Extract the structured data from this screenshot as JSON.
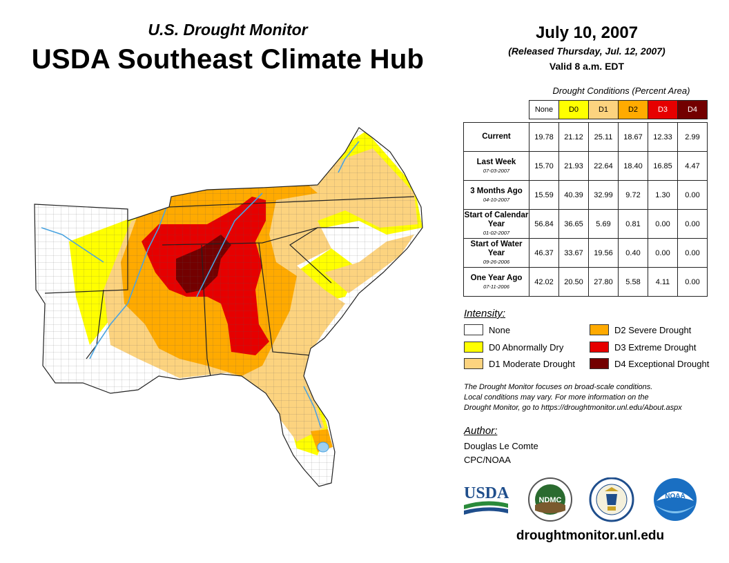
{
  "header": {
    "subtitle": "U.S. Drought Monitor",
    "title": "USDA Southeast Climate Hub",
    "date": "July 10, 2007",
    "released": "(Released Thursday, Jul. 12, 2007)",
    "valid": "Valid 8 a.m. EDT"
  },
  "table": {
    "caption": "Drought Conditions (Percent Area)",
    "columns": [
      "None",
      "D0",
      "D1",
      "D2",
      "D3",
      "D4"
    ],
    "column_colors": [
      "#ffffff",
      "#ffff00",
      "#fcd37f",
      "#ffaa00",
      "#e60000",
      "#730000"
    ],
    "rows": [
      {
        "label": "Current",
        "sub": "",
        "values": [
          "19.78",
          "21.12",
          "25.11",
          "18.67",
          "12.33",
          "2.99"
        ]
      },
      {
        "label": "Last Week",
        "sub": "07-03-2007",
        "values": [
          "15.70",
          "21.93",
          "22.64",
          "18.40",
          "16.85",
          "4.47"
        ]
      },
      {
        "label": "3 Months Ago",
        "sub": "04-10-2007",
        "values": [
          "15.59",
          "40.39",
          "32.99",
          "9.72",
          "1.30",
          "0.00"
        ]
      },
      {
        "label": "Start of Calendar Year",
        "sub": "01-02-2007",
        "values": [
          "56.84",
          "36.65",
          "5.69",
          "0.81",
          "0.00",
          "0.00"
        ]
      },
      {
        "label": "Start of Water Year",
        "sub": "09-26-2006",
        "values": [
          "46.37",
          "33.67",
          "19.56",
          "0.40",
          "0.00",
          "0.00"
        ]
      },
      {
        "label": "One Year Ago",
        "sub": "07-11-2006",
        "values": [
          "42.02",
          "20.50",
          "27.80",
          "5.58",
          "4.11",
          "0.00"
        ]
      }
    ]
  },
  "legend": {
    "title": "Intensity:",
    "items": [
      {
        "label": "None",
        "color": "#ffffff"
      },
      {
        "label": "D0 Abnormally Dry",
        "color": "#ffff00"
      },
      {
        "label": "D1 Moderate Drought",
        "color": "#fcd37f"
      },
      {
        "label": "D2 Severe Drought",
        "color": "#ffaa00"
      },
      {
        "label": "D3 Extreme Drought",
        "color": "#e60000"
      },
      {
        "label": "D4 Exceptional Drought",
        "color": "#730000"
      }
    ]
  },
  "note": {
    "line1": "The Drought Monitor focuses on broad-scale conditions.",
    "line2": "Local conditions may vary. For more information on the",
    "line3": "Drought Monitor, go to https://droughtmonitor.unl.edu/About.aspx"
  },
  "author": {
    "title": "Author:",
    "name": "Douglas Le Comte",
    "org": "CPC/NOAA"
  },
  "logos": {
    "usda": "USDA",
    "ndmc": "NDMC",
    "noaa": "NOAA"
  },
  "website": "droughtmonitor.unl.edu",
  "colors": {
    "none": "#ffffff",
    "d0": "#ffff00",
    "d1": "#fcd37f",
    "d2": "#ffaa00",
    "d3": "#e60000",
    "d4": "#730000",
    "water": "#4aa3e0"
  }
}
